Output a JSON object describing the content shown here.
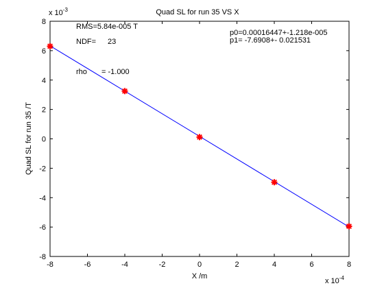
{
  "chart_data": {
    "type": "scatter",
    "title": "Quad SL for run 35 VS X",
    "xlabel": "X /m",
    "ylabel": "Quad SL for run 35 /T",
    "x_exponent_label": "x 10",
    "x_exponent": "-4",
    "y_exponent_label": "x 10",
    "y_exponent": "-3",
    "xlim": [
      -8,
      8
    ],
    "ylim": [
      -8,
      8
    ],
    "xticks": [
      -8,
      -6,
      -4,
      -2,
      0,
      2,
      4,
      6,
      8
    ],
    "yticks": [
      -8,
      -6,
      -4,
      -2,
      0,
      2,
      4,
      6,
      8
    ],
    "x_tick_labels": [
      "-8",
      "-6",
      "-4",
      "-2",
      "0",
      "2",
      "4",
      "6",
      "8"
    ],
    "y_tick_labels": [
      "-8",
      "-6",
      "-4",
      "-2",
      "0",
      "2",
      "4",
      "6",
      "8"
    ],
    "series": [
      {
        "marker": "star",
        "color": "#ff0000",
        "x": [
          -8,
          -4,
          0,
          4,
          8
        ],
        "y": [
          6.3,
          3.25,
          0.12,
          -2.95,
          -5.95
        ]
      }
    ],
    "fit_line": {
      "color": "#0000ff",
      "x": [
        -8,
        8
      ],
      "y": [
        6.33,
        -5.99
      ]
    },
    "annotations": {
      "rms": "RMS=5.84e-005 T",
      "ndf_label": "NDF=",
      "ndf_value": "23",
      "rho_label": "rho",
      "rho_value": "= -1.000",
      "p0": "p0=0.00016447+-1.218e-005",
      "p1": "p1=  -7.6908+- 0.021531"
    },
    "grid": false
  }
}
